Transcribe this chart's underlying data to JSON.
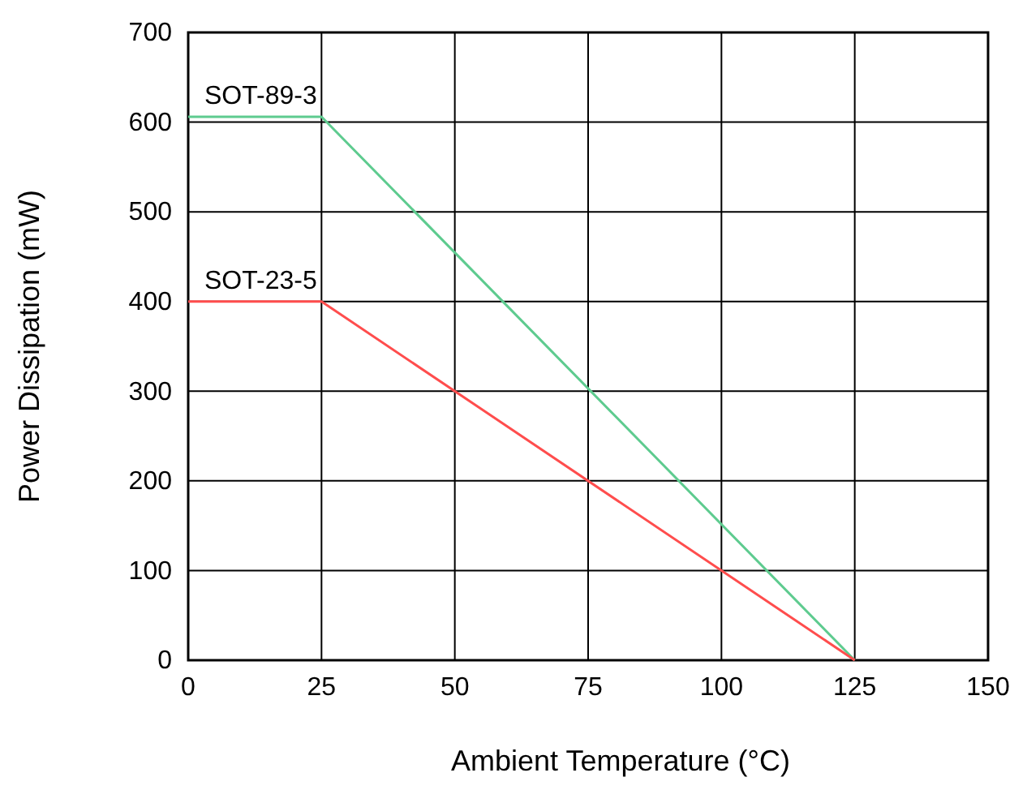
{
  "chart_data": {
    "type": "line",
    "xlabel": "Ambient Temperature  (°C)",
    "ylabel": "Power Dissipation (mW)",
    "xlim": [
      0,
      150
    ],
    "xticks": [
      0,
      25,
      50,
      75,
      100,
      125,
      150
    ],
    "ylim": [
      0,
      700
    ],
    "yticks": [
      0,
      100,
      200,
      300,
      400,
      500,
      600,
      700
    ],
    "grid": true,
    "marker": "none",
    "line_style": "solid",
    "series": [
      {
        "name": "SOT-89-3",
        "color": "#5ecb8f",
        "x": [
          0,
          25,
          125
        ],
        "values": [
          606,
          606,
          0
        ]
      },
      {
        "name": "SOT-23-5",
        "color": "#ff4d4d",
        "x": [
          0,
          25,
          125
        ],
        "values": [
          400,
          400,
          0
        ]
      }
    ]
  }
}
